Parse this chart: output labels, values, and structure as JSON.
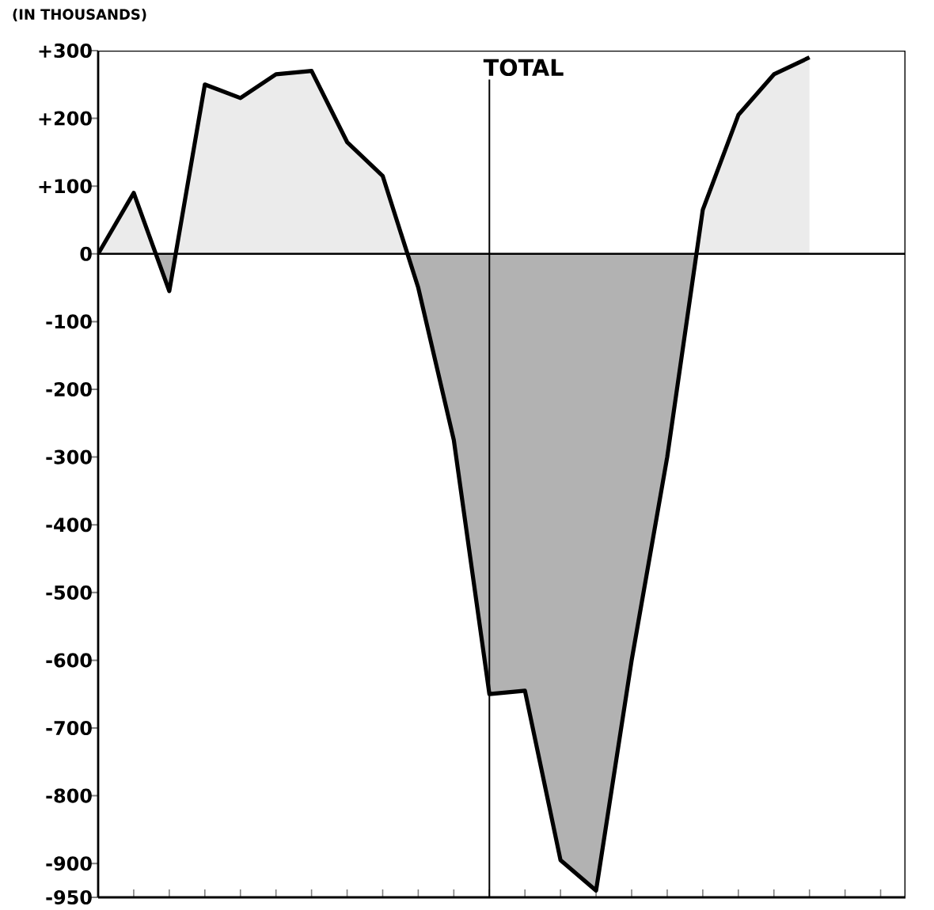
{
  "chart_data": {
    "type": "area",
    "annotations": [
      "(IN THOUSANDS)",
      "TOTAL"
    ],
    "categories": [
      null,
      null,
      null,
      null,
      null,
      null,
      null,
      null,
      null,
      null,
      null,
      null,
      null,
      null,
      null,
      null,
      null,
      null,
      null,
      null,
      null,
      null,
      null
    ],
    "values": [
      0,
      90,
      -55,
      250,
      230,
      265,
      270,
      165,
      115,
      -50,
      -275,
      -650,
      -645,
      -895,
      -940,
      -600,
      -300,
      65,
      205,
      265,
      290,
      null,
      null
    ],
    "color": "#000000",
    "ylim": [
      -950,
      300
    ],
    "yticks": [
      {
        "value": 300,
        "label": "+300"
      },
      {
        "value": 200,
        "label": "+200"
      },
      {
        "value": 100,
        "label": "+100"
      },
      0,
      -100,
      -200,
      -300,
      -400,
      -500,
      -600,
      -700,
      -800,
      -900,
      -950
    ]
  }
}
